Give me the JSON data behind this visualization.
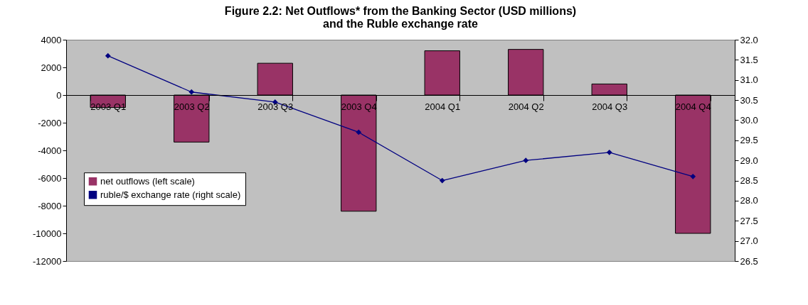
{
  "chart_data": {
    "type": "bar",
    "title": "Figure 2.2: Net Outflows* from the Banking Sector (USD millions)\nand the Ruble exchange rate",
    "categories": [
      "2003 Q1",
      "2003 Q2",
      "2003 Q3",
      "2003 Q4",
      "2004 Q1",
      "2004 Q2",
      "2004 Q3",
      "2004 Q4"
    ],
    "series": [
      {
        "name": "net outflows (left scale)",
        "color": "#993366",
        "values": [
          -900,
          -3400,
          2300,
          -8400,
          3200,
          3300,
          800,
          -10000
        ]
      },
      {
        "name": "ruble/$ exchange rate (right scale)",
        "type": "line",
        "axis": "y2",
        "color": "#000080",
        "marker": "diamond",
        "line_style": "solid",
        "values": [
          31.6,
          30.7,
          30.45,
          29.7,
          28.5,
          29.0,
          29.2,
          28.6
        ]
      }
    ],
    "ylim": [
      -12000,
      4000
    ],
    "yticks": [
      -12000,
      -10000,
      -8000,
      -6000,
      -4000,
      -2000,
      0,
      2000,
      4000
    ],
    "y2lim": [
      26.5,
      32
    ],
    "y2ticks": [
      {
        "value": 26.5,
        "label": "26.5"
      },
      {
        "value": 27,
        "label": "27.0"
      },
      {
        "value": 27.5,
        "label": "27.5"
      },
      {
        "value": 28,
        "label": "28.0"
      },
      {
        "value": 28.5,
        "label": "28.5"
      },
      {
        "value": 29,
        "label": "29.0"
      },
      {
        "value": 29.5,
        "label": "29.5"
      },
      {
        "value": 30,
        "label": "30.0"
      },
      {
        "value": 30.5,
        "label": "30.5"
      },
      {
        "value": 31,
        "label": "31.0"
      },
      {
        "value": 31.5,
        "label": "31.5"
      },
      {
        "value": 32,
        "label": "32.0"
      }
    ],
    "grid": false,
    "legend": "left"
  }
}
